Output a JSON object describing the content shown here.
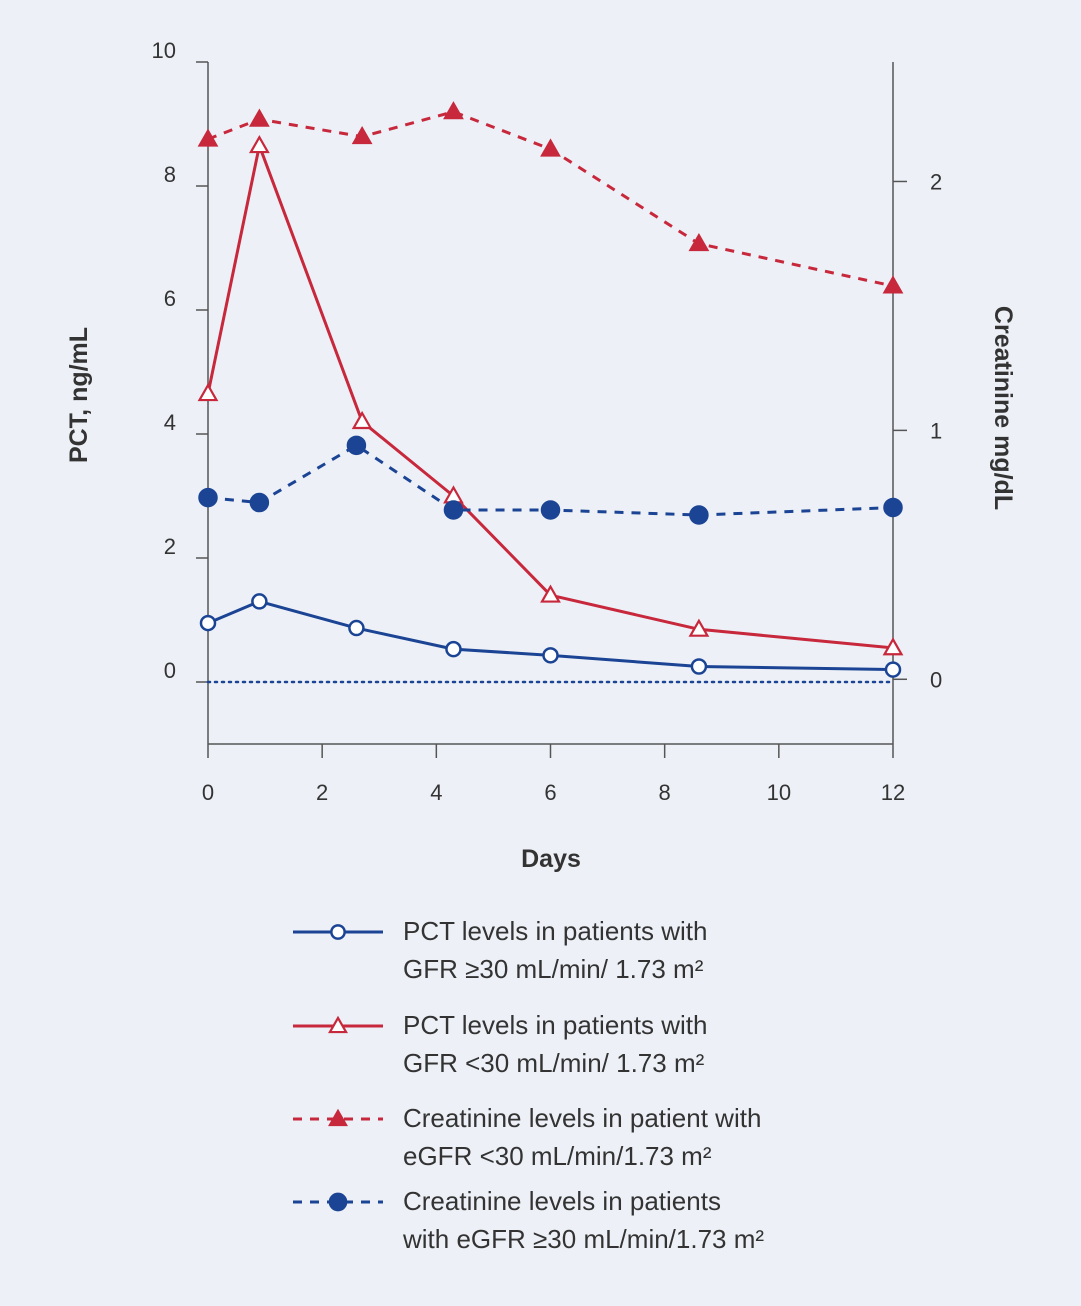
{
  "chart_data": {
    "type": "line",
    "xlabel": "Days",
    "ylabel_left": "PCT, ng/mL",
    "ylabel_right": "Creatinine mg/dL",
    "x_ticks": [
      "0",
      "2",
      "4",
      "6",
      "8",
      "10",
      "12"
    ],
    "y_left_ticks": [
      "10",
      "8",
      "6",
      "4",
      "2",
      "0"
    ],
    "y_right_ticks": [
      "2",
      "1",
      "0"
    ],
    "xlim": [
      0,
      12
    ],
    "ylim_left": [
      -1,
      10
    ],
    "ylim_right": [
      -0.26,
      2.48
    ],
    "grid": false,
    "legend_position": "bottom",
    "colors": {
      "blue": "#1c4494",
      "red": "#c8283c",
      "background": "#edf1f7",
      "axis": "#555555"
    },
    "series": [
      {
        "name_lines": [
          "PCT levels in patients with",
          "GFR ≥30 mL/min/ 1.73 m²"
        ],
        "axis": "left",
        "color": "#1c4494",
        "line": "solid",
        "marker": "circle-open",
        "x": [
          0,
          0.9,
          2.6,
          4.3,
          6,
          8.6,
          12
        ],
        "y": [
          0.95,
          1.3,
          0.87,
          0.53,
          0.43,
          0.25,
          0.2
        ]
      },
      {
        "name_lines": [
          "PCT levels in patients with",
          "GFR <30 mL/min/ 1.73 m²"
        ],
        "axis": "left",
        "color": "#c8283c",
        "line": "solid",
        "marker": "triangle-open",
        "x": [
          0,
          0.9,
          2.7,
          4.3,
          6,
          8.6,
          12
        ],
        "y": [
          4.65,
          8.65,
          4.2,
          3.0,
          1.4,
          0.85,
          0.55
        ]
      },
      {
        "name_lines": [
          "Creatinine levels in patient with",
          "eGFR <30 mL/min/1.73 m²"
        ],
        "axis": "right",
        "color": "#c8283c",
        "line": "dashed",
        "marker": "triangle-filled",
        "x": [
          0,
          0.9,
          2.7,
          4.3,
          6,
          8.6,
          12
        ],
        "y": [
          2.17,
          2.25,
          2.18,
          2.28,
          2.13,
          1.75,
          1.58
        ]
      },
      {
        "name_lines": [
          "Creatinine levels in patients",
          "with eGFR ≥30 mL/min/1.73 m²"
        ],
        "axis": "right",
        "color": "#1c4494",
        "line": "dashed",
        "marker": "circle-filled",
        "x": [
          0,
          0.9,
          2.6,
          4.3,
          6,
          8.6,
          12
        ],
        "y": [
          0.73,
          0.71,
          0.94,
          0.68,
          0.68,
          0.66,
          0.69
        ]
      }
    ]
  }
}
